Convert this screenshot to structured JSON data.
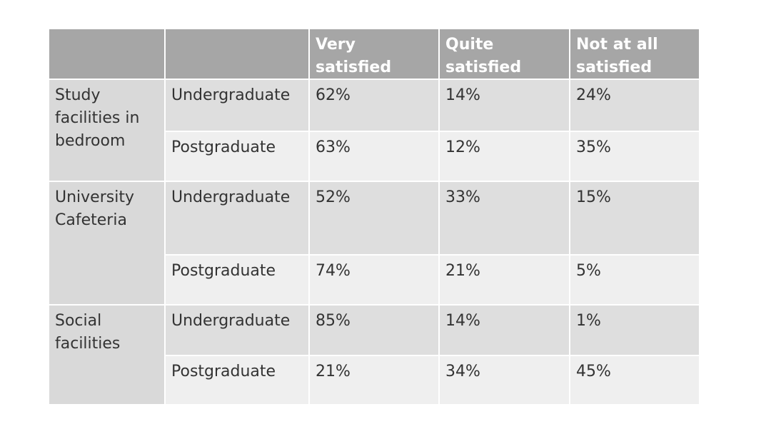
{
  "table": {
    "columns": [
      "Very satisfied",
      "Quite satisfied",
      "Not at all satisfied"
    ],
    "groups": [
      {
        "label": "Study facilities in bedroom",
        "rows": [
          {
            "level": "Undergraduate",
            "values": [
              "62%",
              "14%",
              "24%"
            ]
          },
          {
            "level": "Postgraduate",
            "values": [
              "63%",
              "12%",
              "35%"
            ]
          }
        ]
      },
      {
        "label": "University Cafeteria",
        "rows": [
          {
            "level": "Undergraduate",
            "values": [
              "52%",
              "33%",
              "15%"
            ]
          },
          {
            "level": "Postgraduate",
            "values": [
              "74%",
              "21%",
              "5%"
            ]
          }
        ]
      },
      {
        "label": "Social facilities",
        "rows": [
          {
            "level": "Undergraduate",
            "values": [
              "85%",
              "14%",
              "1%"
            ]
          },
          {
            "level": "Postgraduate",
            "values": [
              "21%",
              "34%",
              "45%"
            ]
          }
        ]
      }
    ]
  }
}
